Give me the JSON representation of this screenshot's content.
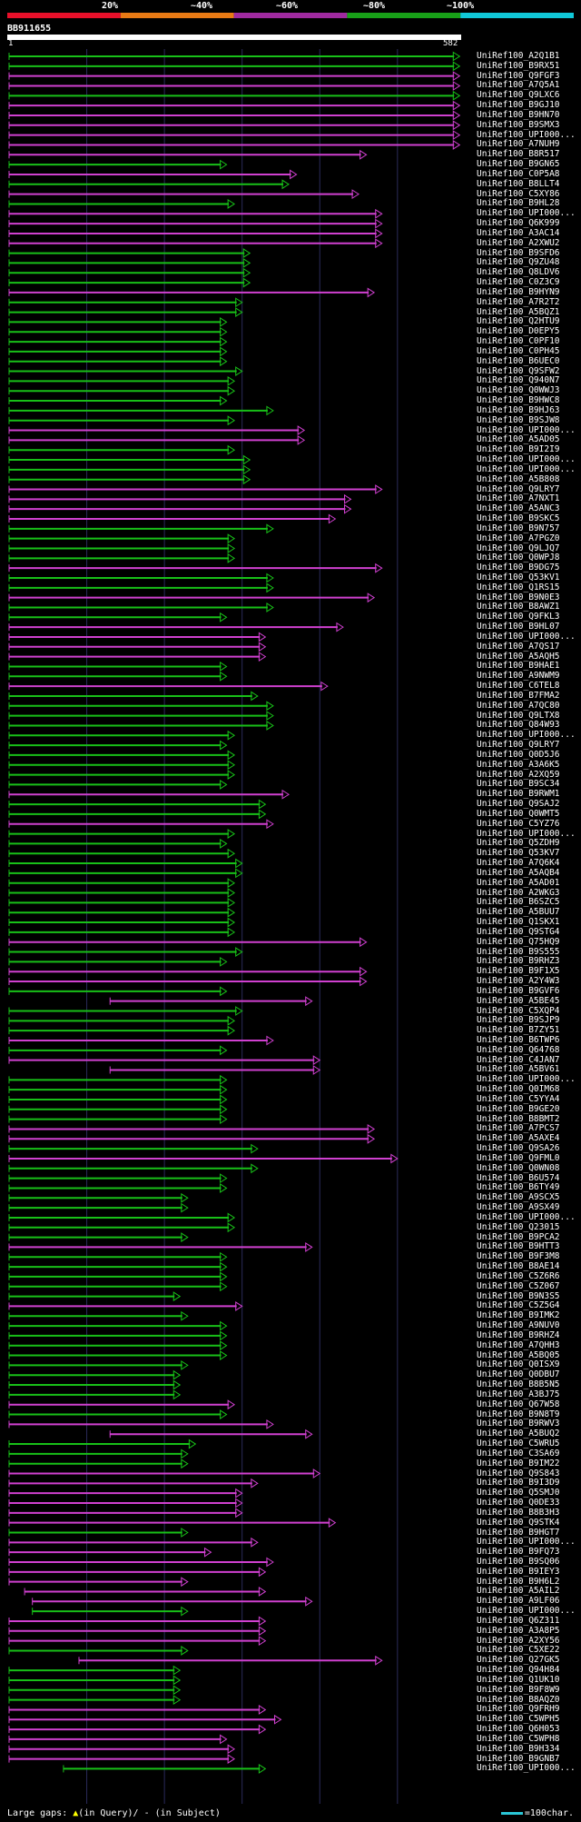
{
  "query": {
    "name": "BB911655",
    "start_label": "1",
    "end_label": "582"
  },
  "identity_scale": {
    "labels": [
      "20%",
      "~40%",
      "~60%",
      "~80%",
      "~100%"
    ],
    "colors": [
      "#e8102a",
      "#e87a14",
      "#a02aa0",
      "#18a018",
      "#10c8d8"
    ]
  },
  "hit_colors": {
    "green": "#18c018",
    "magenta": "#d040d0"
  },
  "footer": {
    "prefix": "Large gaps:",
    "query_gap_text": "(in Query)/",
    "subject_gap_text": "(in Subject)",
    "scale_text": "=100char."
  },
  "hits": [
    {
      "name": "UniRef100_A2Q1B1",
      "start": 0,
      "end": 580,
      "color": "green"
    },
    {
      "name": "UniRef100_B9RX51",
      "start": 0,
      "end": 580,
      "color": "green"
    },
    {
      "name": "UniRef100_Q9FGF3",
      "start": 0,
      "end": 580,
      "color": "magenta"
    },
    {
      "name": "UniRef100_A7Q5A1",
      "start": 0,
      "end": 580,
      "color": "magenta"
    },
    {
      "name": "UniRef100_Q9LXC6",
      "start": 0,
      "end": 580,
      "color": "green"
    },
    {
      "name": "UniRef100_B9GJ10",
      "start": 0,
      "end": 580,
      "color": "magenta"
    },
    {
      "name": "UniRef100_B9HN70",
      "start": 0,
      "end": 580,
      "color": "magenta"
    },
    {
      "name": "UniRef100_B9SMX3",
      "start": 0,
      "end": 580,
      "color": "magenta"
    },
    {
      "name": "UniRef100_UPI000...",
      "start": 0,
      "end": 580,
      "color": "magenta"
    },
    {
      "name": "UniRef100_A7NUH9",
      "start": 0,
      "end": 580,
      "color": "magenta"
    },
    {
      "name": "UniRef100_B8R517",
      "start": 0,
      "end": 460,
      "color": "magenta"
    },
    {
      "name": "UniRef100_B9GN65",
      "start": 0,
      "end": 280,
      "color": "green"
    },
    {
      "name": "UniRef100_C0P5A8",
      "start": 0,
      "end": 370,
      "color": "magenta"
    },
    {
      "name": "UniRef100_B8LLT4",
      "start": 0,
      "end": 360,
      "color": "green"
    },
    {
      "name": "UniRef100_C5XY86",
      "start": 0,
      "end": 450,
      "color": "magenta"
    },
    {
      "name": "UniRef100_B9HL28",
      "start": 0,
      "end": 290,
      "color": "green"
    },
    {
      "name": "UniRef100_UPI000...",
      "start": 0,
      "end": 480,
      "color": "magenta"
    },
    {
      "name": "UniRef100_Q6K999",
      "start": 0,
      "end": 480,
      "color": "magenta"
    },
    {
      "name": "UniRef100_A3AC14",
      "start": 0,
      "end": 480,
      "color": "magenta"
    },
    {
      "name": "UniRef100_A2XWU2",
      "start": 0,
      "end": 480,
      "color": "magenta"
    },
    {
      "name": "UniRef100_B9SFD6",
      "start": 0,
      "end": 310,
      "color": "green"
    },
    {
      "name": "UniRef100_Q9ZU48",
      "start": 0,
      "end": 310,
      "color": "green"
    },
    {
      "name": "UniRef100_Q8LDV6",
      "start": 0,
      "end": 310,
      "color": "green"
    },
    {
      "name": "UniRef100_C0Z3C9",
      "start": 0,
      "end": 310,
      "color": "green"
    },
    {
      "name": "UniRef100_B9HYN9",
      "start": 0,
      "end": 470,
      "color": "magenta"
    },
    {
      "name": "UniRef100_A7R2T2",
      "start": 0,
      "end": 300,
      "color": "green"
    },
    {
      "name": "UniRef100_A5BQZ1",
      "start": 0,
      "end": 300,
      "color": "green"
    },
    {
      "name": "UniRef100_Q2HTU9",
      "start": 0,
      "end": 280,
      "color": "green"
    },
    {
      "name": "UniRef100_D0EPY5",
      "start": 0,
      "end": 280,
      "color": "green"
    },
    {
      "name": "UniRef100_C0PF10",
      "start": 0,
      "end": 280,
      "color": "green"
    },
    {
      "name": "UniRef100_C0PH45",
      "start": 0,
      "end": 280,
      "color": "green"
    },
    {
      "name": "UniRef100_B6UEC0",
      "start": 0,
      "end": 280,
      "color": "green"
    },
    {
      "name": "UniRef100_Q9SFW2",
      "start": 0,
      "end": 300,
      "color": "green"
    },
    {
      "name": "UniRef100_Q940N7",
      "start": 0,
      "end": 290,
      "color": "green"
    },
    {
      "name": "UniRef100_Q0WWJ3",
      "start": 0,
      "end": 290,
      "color": "green"
    },
    {
      "name": "UniRef100_B9HWC8",
      "start": 0,
      "end": 280,
      "color": "green"
    },
    {
      "name": "UniRef100_B9HJ63",
      "start": 0,
      "end": 340,
      "color": "green"
    },
    {
      "name": "UniRef100_B9SJW8",
      "start": 0,
      "end": 290,
      "color": "green"
    },
    {
      "name": "UniRef100_UPI000...",
      "start": 0,
      "end": 380,
      "color": "magenta"
    },
    {
      "name": "UniRef100_A5AD05",
      "start": 0,
      "end": 380,
      "color": "magenta"
    },
    {
      "name": "UniRef100_B9I2I9",
      "start": 0,
      "end": 290,
      "color": "green"
    },
    {
      "name": "UniRef100_UPI000...",
      "start": 0,
      "end": 310,
      "color": "green"
    },
    {
      "name": "UniRef100_UPI000...",
      "start": 0,
      "end": 310,
      "color": "green"
    },
    {
      "name": "UniRef100_A5B808",
      "start": 0,
      "end": 310,
      "color": "green"
    },
    {
      "name": "UniRef100_Q9LRY7",
      "start": 0,
      "end": 480,
      "color": "magenta"
    },
    {
      "name": "UniRef100_A7NXT1",
      "start": 0,
      "end": 440,
      "color": "magenta"
    },
    {
      "name": "UniRef100_A5ANC3",
      "start": 0,
      "end": 440,
      "color": "magenta"
    },
    {
      "name": "UniRef100_B9SKC5",
      "start": 0,
      "end": 420,
      "color": "magenta"
    },
    {
      "name": "UniRef100_B9N757",
      "start": 0,
      "end": 340,
      "color": "green"
    },
    {
      "name": "UniRef100_A7PGZ0",
      "start": 0,
      "end": 290,
      "color": "green"
    },
    {
      "name": "UniRef100_Q9LJQ7",
      "start": 0,
      "end": 290,
      "color": "green"
    },
    {
      "name": "UniRef100_Q0WPJ8",
      "start": 0,
      "end": 290,
      "color": "green"
    },
    {
      "name": "UniRef100_B9DG75",
      "start": 0,
      "end": 480,
      "color": "magenta"
    },
    {
      "name": "UniRef100_Q53KV1",
      "start": 0,
      "end": 340,
      "color": "green"
    },
    {
      "name": "UniRef100_Q1RS15",
      "start": 0,
      "end": 340,
      "color": "green"
    },
    {
      "name": "UniRef100_B9N0E3",
      "start": 0,
      "end": 470,
      "color": "magenta"
    },
    {
      "name": "UniRef100_B8AWZ1",
      "start": 0,
      "end": 340,
      "color": "green"
    },
    {
      "name": "UniRef100_Q9FKL3",
      "start": 0,
      "end": 280,
      "color": "green"
    },
    {
      "name": "UniRef100_B9HL07",
      "start": 0,
      "end": 430,
      "color": "magenta"
    },
    {
      "name": "UniRef100_UPI000...",
      "start": 0,
      "end": 330,
      "color": "magenta"
    },
    {
      "name": "UniRef100_A7QS17",
      "start": 0,
      "end": 330,
      "color": "magenta"
    },
    {
      "name": "UniRef100_A5AQH5",
      "start": 0,
      "end": 330,
      "color": "magenta"
    },
    {
      "name": "UniRef100_B9HAE1",
      "start": 0,
      "end": 280,
      "color": "green"
    },
    {
      "name": "UniRef100_A9NWM9",
      "start": 0,
      "end": 280,
      "color": "green"
    },
    {
      "name": "UniRef100_C6TEL8",
      "start": 0,
      "end": 410,
      "color": "magenta"
    },
    {
      "name": "UniRef100_B7FMA2",
      "start": 0,
      "end": 320,
      "color": "green"
    },
    {
      "name": "UniRef100_A7QC80",
      "start": 0,
      "end": 340,
      "color": "green"
    },
    {
      "name": "UniRef100_Q9LTX8",
      "start": 0,
      "end": 340,
      "color": "green"
    },
    {
      "name": "UniRef100_Q84W93",
      "start": 0,
      "end": 340,
      "color": "green"
    },
    {
      "name": "UniRef100_UPI000...",
      "start": 0,
      "end": 290,
      "color": "green"
    },
    {
      "name": "UniRef100_Q9LRY7",
      "start": 0,
      "end": 280,
      "color": "green"
    },
    {
      "name": "UniRef100_Q0D5J6",
      "start": 0,
      "end": 290,
      "color": "green"
    },
    {
      "name": "UniRef100_A3A6K5",
      "start": 0,
      "end": 290,
      "color": "green"
    },
    {
      "name": "UniRef100_A2XQ59",
      "start": 0,
      "end": 290,
      "color": "green"
    },
    {
      "name": "UniRef100_B9SC34",
      "start": 0,
      "end": 280,
      "color": "green"
    },
    {
      "name": "UniRef100_B9RWM1",
      "start": 0,
      "end": 360,
      "color": "magenta"
    },
    {
      "name": "UniRef100_Q9SAJ2",
      "start": 0,
      "end": 330,
      "color": "green"
    },
    {
      "name": "UniRef100_Q0WMT5",
      "start": 0,
      "end": 330,
      "color": "green"
    },
    {
      "name": "UniRef100_C5YZ76",
      "start": 0,
      "end": 340,
      "color": "magenta"
    },
    {
      "name": "UniRef100_UPI000...",
      "start": 0,
      "end": 290,
      "color": "green"
    },
    {
      "name": "UniRef100_Q5ZDH9",
      "start": 0,
      "end": 280,
      "color": "green"
    },
    {
      "name": "UniRef100_Q53KV7",
      "start": 0,
      "end": 290,
      "color": "green"
    },
    {
      "name": "UniRef100_A7Q6K4",
      "start": 0,
      "end": 300,
      "color": "green"
    },
    {
      "name": "UniRef100_A5AQB4",
      "start": 0,
      "end": 300,
      "color": "green"
    },
    {
      "name": "UniRef100_A5AD01",
      "start": 0,
      "end": 290,
      "color": "green"
    },
    {
      "name": "UniRef100_A2WKG3",
      "start": 0,
      "end": 290,
      "color": "green"
    },
    {
      "name": "UniRef100_B6SZC5",
      "start": 0,
      "end": 290,
      "color": "green"
    },
    {
      "name": "UniRef100_A5BUU7",
      "start": 0,
      "end": 290,
      "color": "green"
    },
    {
      "name": "UniRef100_Q1SKX1",
      "start": 0,
      "end": 290,
      "color": "green"
    },
    {
      "name": "UniRef100_Q9STG4",
      "start": 0,
      "end": 290,
      "color": "green"
    },
    {
      "name": "UniRef100_Q75HQ9",
      "start": 0,
      "end": 460,
      "color": "magenta"
    },
    {
      "name": "UniRef100_B9S555",
      "start": 0,
      "end": 300,
      "color": "green"
    },
    {
      "name": "UniRef100_B9RHZ3",
      "start": 0,
      "end": 280,
      "color": "green"
    },
    {
      "name": "UniRef100_B9F1X5",
      "start": 0,
      "end": 460,
      "color": "magenta"
    },
    {
      "name": "UniRef100_A2Y4W3",
      "start": 0,
      "end": 460,
      "color": "magenta"
    },
    {
      "name": "UniRef100_B9GVF6",
      "start": 0,
      "end": 280,
      "color": "green"
    },
    {
      "name": "UniRef100_A5BE45",
      "start": 130,
      "end": 390,
      "color": "magenta"
    },
    {
      "name": "UniRef100_C5XQP4",
      "start": 0,
      "end": 300,
      "color": "green"
    },
    {
      "name": "UniRef100_B9SJP9",
      "start": 0,
      "end": 290,
      "color": "green"
    },
    {
      "name": "UniRef100_B7ZY51",
      "start": 0,
      "end": 290,
      "color": "green"
    },
    {
      "name": "UniRef100_B6TWP6",
      "start": 0,
      "end": 340,
      "color": "magenta"
    },
    {
      "name": "UniRef100_Q64768",
      "start": 0,
      "end": 280,
      "color": "green"
    },
    {
      "name": "UniRef100_C4JAN7",
      "start": 0,
      "end": 400,
      "color": "magenta"
    },
    {
      "name": "UniRef100_A5BV61",
      "start": 130,
      "end": 400,
      "color": "magenta"
    },
    {
      "name": "UniRef100_UPI000...",
      "start": 0,
      "end": 280,
      "color": "green"
    },
    {
      "name": "UniRef100_Q0IM68",
      "start": 0,
      "end": 280,
      "color": "green"
    },
    {
      "name": "UniRef100_C5YYA4",
      "start": 0,
      "end": 280,
      "color": "green"
    },
    {
      "name": "UniRef100_B9GE20",
      "start": 0,
      "end": 280,
      "color": "green"
    },
    {
      "name": "UniRef100_B8BMT2",
      "start": 0,
      "end": 280,
      "color": "green"
    },
    {
      "name": "UniRef100_A7PCS7",
      "start": 0,
      "end": 470,
      "color": "magenta"
    },
    {
      "name": "UniRef100_A5AXE4",
      "start": 0,
      "end": 470,
      "color": "magenta"
    },
    {
      "name": "UniRef100_Q9SA26",
      "start": 0,
      "end": 320,
      "color": "green"
    },
    {
      "name": "UniRef100_Q9FML0",
      "start": 0,
      "end": 500,
      "color": "magenta"
    },
    {
      "name": "UniRef100_Q0WN08",
      "start": 0,
      "end": 320,
      "color": "green"
    },
    {
      "name": "UniRef100_B6U574",
      "start": 0,
      "end": 280,
      "color": "green"
    },
    {
      "name": "UniRef100_B6TY49",
      "start": 0,
      "end": 280,
      "color": "green"
    },
    {
      "name": "UniRef100_A9SCX5",
      "start": 0,
      "end": 230,
      "color": "green"
    },
    {
      "name": "UniRef100_A9SX49",
      "start": 0,
      "end": 230,
      "color": "green"
    },
    {
      "name": "UniRef100_UPI000...",
      "start": 0,
      "end": 290,
      "color": "green"
    },
    {
      "name": "UniRef100_Q23015",
      "start": 0,
      "end": 290,
      "color": "green"
    },
    {
      "name": "UniRef100_B9PCA2",
      "start": 0,
      "end": 230,
      "color": "green"
    },
    {
      "name": "UniRef100_B9HTT3",
      "start": 0,
      "end": 390,
      "color": "magenta"
    },
    {
      "name": "UniRef100_B9F3M8",
      "start": 0,
      "end": 280,
      "color": "green"
    },
    {
      "name": "UniRef100_B8AE14",
      "start": 0,
      "end": 280,
      "color": "green"
    },
    {
      "name": "UniRef100_C5Z6R6",
      "start": 0,
      "end": 280,
      "color": "green"
    },
    {
      "name": "UniRef100_C5Z067",
      "start": 0,
      "end": 280,
      "color": "green"
    },
    {
      "name": "UniRef100_B9N3S5",
      "start": 0,
      "end": 220,
      "color": "green"
    },
    {
      "name": "UniRef100_C5Z5G4",
      "start": 0,
      "end": 300,
      "color": "magenta"
    },
    {
      "name": "UniRef100_B9IMK2",
      "start": 0,
      "end": 230,
      "color": "green"
    },
    {
      "name": "UniRef100_A9NUV0",
      "start": 0,
      "end": 280,
      "color": "green"
    },
    {
      "name": "UniRef100_B9RHZ4",
      "start": 0,
      "end": 280,
      "color": "green"
    },
    {
      "name": "UniRef100_A7QHH3",
      "start": 0,
      "end": 280,
      "color": "green"
    },
    {
      "name": "UniRef100_A5BQ05",
      "start": 0,
      "end": 280,
      "color": "green"
    },
    {
      "name": "UniRef100_Q0ISX9",
      "start": 0,
      "end": 230,
      "color": "green"
    },
    {
      "name": "UniRef100_Q0DBU7",
      "start": 0,
      "end": 220,
      "color": "green"
    },
    {
      "name": "UniRef100_B8B5N5",
      "start": 0,
      "end": 220,
      "color": "green"
    },
    {
      "name": "UniRef100_A3BJ75",
      "start": 0,
      "end": 220,
      "color": "green"
    },
    {
      "name": "UniRef100_Q67W58",
      "start": 0,
      "end": 290,
      "color": "magenta"
    },
    {
      "name": "UniRef100_B9N8T9",
      "start": 0,
      "end": 280,
      "color": "green"
    },
    {
      "name": "UniRef100_B9RWV3",
      "start": 0,
      "end": 340,
      "color": "magenta"
    },
    {
      "name": "UniRef100_A5BUQ2",
      "start": 130,
      "end": 390,
      "color": "magenta"
    },
    {
      "name": "UniRef100_C5WRU5",
      "start": 0,
      "end": 240,
      "color": "green"
    },
    {
      "name": "UniRef100_C3SA69",
      "start": 0,
      "end": 230,
      "color": "green"
    },
    {
      "name": "UniRef100_B9IM22",
      "start": 0,
      "end": 230,
      "color": "green"
    },
    {
      "name": "UniRef100_Q9S843",
      "start": 0,
      "end": 400,
      "color": "magenta"
    },
    {
      "name": "UniRef100_B9I3D9",
      "start": 0,
      "end": 320,
      "color": "magenta"
    },
    {
      "name": "UniRef100_Q5SMJ0",
      "start": 0,
      "end": 300,
      "color": "magenta"
    },
    {
      "name": "UniRef100_Q0DE33",
      "start": 0,
      "end": 300,
      "color": "magenta"
    },
    {
      "name": "UniRef100_B8B3H3",
      "start": 0,
      "end": 300,
      "color": "magenta"
    },
    {
      "name": "UniRef100_Q9STK4",
      "start": 0,
      "end": 420,
      "color": "magenta"
    },
    {
      "name": "UniRef100_B9HGT7",
      "start": 0,
      "end": 230,
      "color": "green"
    },
    {
      "name": "UniRef100_UPI000...",
      "start": 0,
      "end": 320,
      "color": "magenta"
    },
    {
      "name": "UniRef100_B9FQ73",
      "start": 0,
      "end": 260,
      "color": "magenta"
    },
    {
      "name": "UniRef100_B9SQ06",
      "start": 0,
      "end": 340,
      "color": "magenta"
    },
    {
      "name": "UniRef100_B9IEY3",
      "start": 0,
      "end": 330,
      "color": "magenta"
    },
    {
      "name": "UniRef100_B9H6L2",
      "start": 0,
      "end": 230,
      "color": "magenta"
    },
    {
      "name": "UniRef100_A5AIL2",
      "start": 20,
      "end": 330,
      "color": "magenta"
    },
    {
      "name": "UniRef100_A9LF06",
      "start": 30,
      "end": 390,
      "color": "magenta"
    },
    {
      "name": "UniRef100_UPI000...",
      "start": 30,
      "end": 230,
      "color": "green"
    },
    {
      "name": "UniRef100_Q6Z311",
      "start": 0,
      "end": 330,
      "color": "magenta"
    },
    {
      "name": "UniRef100_A3A8P5",
      "start": 0,
      "end": 330,
      "color": "magenta"
    },
    {
      "name": "UniRef100_A2XY56",
      "start": 0,
      "end": 330,
      "color": "magenta"
    },
    {
      "name": "UniRef100_C5XE22",
      "start": 0,
      "end": 230,
      "color": "green"
    },
    {
      "name": "UniRef100_Q27GK5",
      "start": 90,
      "end": 480,
      "color": "magenta"
    },
    {
      "name": "UniRef100_Q94H84",
      "start": 0,
      "end": 220,
      "color": "green"
    },
    {
      "name": "UniRef100_Q1UK10",
      "start": 0,
      "end": 220,
      "color": "green"
    },
    {
      "name": "UniRef100_B9F8W9",
      "start": 0,
      "end": 220,
      "color": "green"
    },
    {
      "name": "UniRef100_B8AQZ0",
      "start": 0,
      "end": 220,
      "color": "green"
    },
    {
      "name": "UniRef100_Q9FRH9",
      "start": 0,
      "end": 330,
      "color": "magenta"
    },
    {
      "name": "UniRef100_C5WPH5",
      "start": 0,
      "end": 350,
      "color": "magenta"
    },
    {
      "name": "UniRef100_Q6H053",
      "start": 0,
      "end": 330,
      "color": "magenta"
    },
    {
      "name": "UniRef100_C5WPH8",
      "start": 0,
      "end": 280,
      "color": "magenta"
    },
    {
      "name": "UniRef100_B9H334",
      "start": 0,
      "end": 290,
      "color": "magenta"
    },
    {
      "name": "UniRef100_B9GNB7",
      "start": 0,
      "end": 290,
      "color": "magenta"
    },
    {
      "name": "UniRef100_UPI000...",
      "start": 70,
      "end": 330,
      "color": "green"
    }
  ]
}
